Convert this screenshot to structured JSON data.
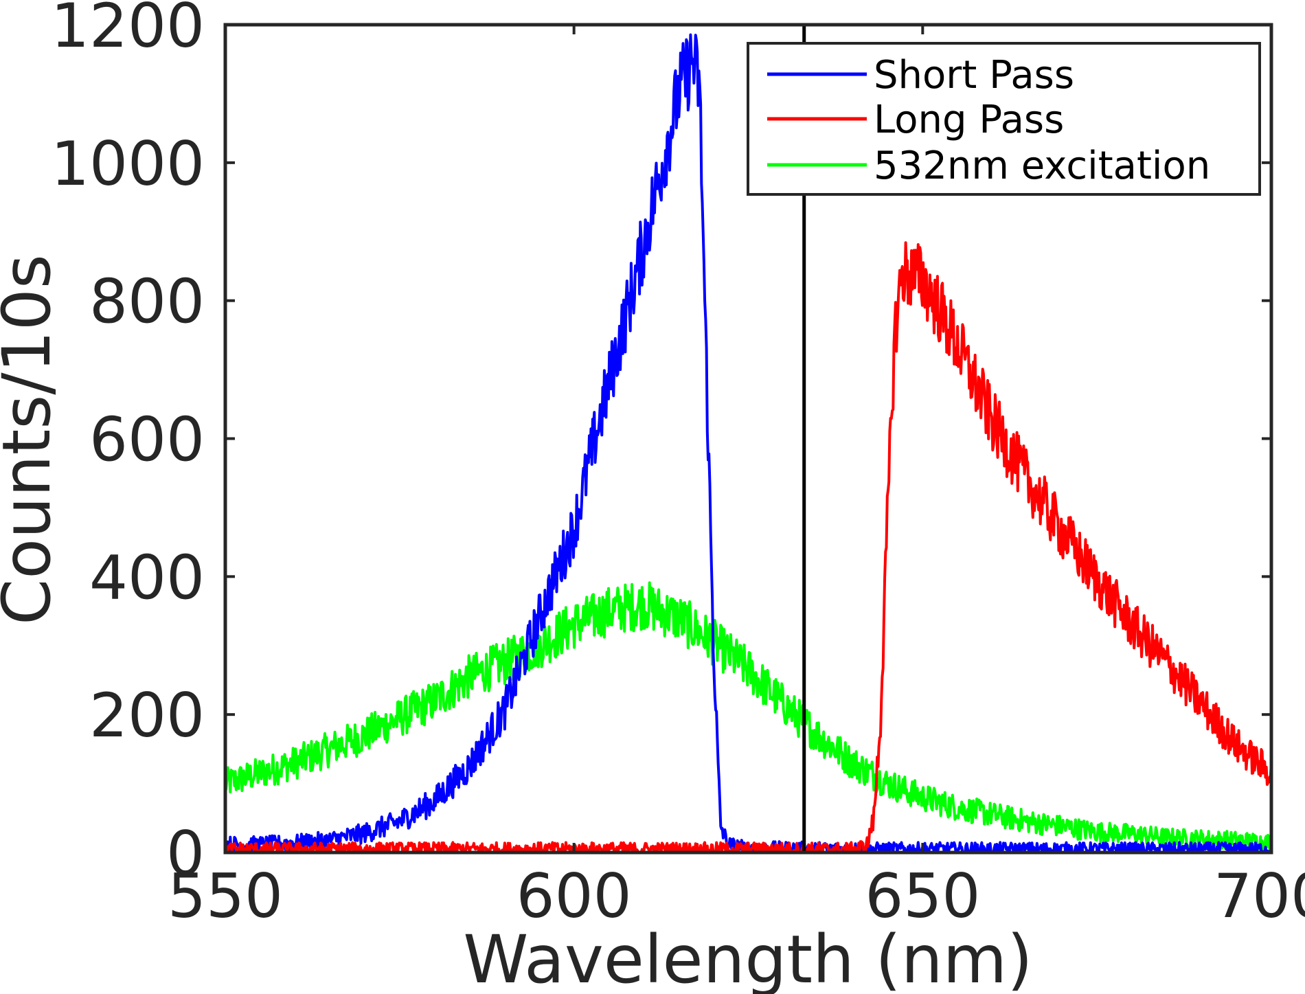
{
  "chart_data": {
    "type": "line",
    "xlabel": "Wavelength (nm)",
    "ylabel": "Counts/10s",
    "xlim": [
      550,
      700
    ],
    "ylim": [
      0,
      1200
    ],
    "xticks": [
      "550",
      "600",
      "650",
      "700"
    ],
    "yticks": [
      "0",
      "200",
      "400",
      "600",
      "800",
      "1000",
      "1200"
    ],
    "grid": false,
    "legend_position": "top-right",
    "vertical_line_x": 633,
    "series": [
      {
        "name": "Short Pass",
        "color": "#0000ff",
        "x": [
          550,
          555,
          560,
          565,
          570,
          575,
          580,
          585,
          590,
          595,
          600,
          603,
          606,
          609,
          612,
          615,
          617,
          618,
          619,
          620,
          621,
          622,
          625,
          630,
          640,
          650,
          660,
          680,
          700
        ],
        "y": [
          12,
          12,
          14,
          18,
          28,
          45,
          75,
          125,
          205,
          340,
          470,
          600,
          720,
          840,
          970,
          1100,
          1150,
          1110,
          700,
          300,
          40,
          12,
          6,
          6,
          5,
          5,
          5,
          5,
          5
        ]
      },
      {
        "name": "Long Pass",
        "color": "#ff0000",
        "x": [
          550,
          600,
          640,
          642,
          643,
          644,
          645,
          646,
          647,
          648,
          650,
          652,
          655,
          660,
          665,
          670,
          675,
          680,
          685,
          690,
          695,
          700
        ],
        "y": [
          5,
          5,
          5,
          10,
          50,
          200,
          500,
          750,
          840,
          840,
          830,
          795,
          735,
          625,
          540,
          465,
          395,
          330,
          275,
          215,
          155,
          115
        ]
      },
      {
        "name": "532nm excitation",
        "color": "#00ff00",
        "x": [
          550,
          555,
          560,
          565,
          570,
          575,
          580,
          585,
          590,
          595,
          600,
          605,
          610,
          615,
          620,
          625,
          630,
          635,
          640,
          645,
          650,
          655,
          660,
          665,
          670,
          675,
          680,
          685,
          690,
          695,
          700
        ],
        "y": [
          100,
          115,
          130,
          150,
          170,
          195,
          220,
          255,
          275,
          300,
          330,
          350,
          360,
          340,
          305,
          265,
          215,
          170,
          130,
          100,
          80,
          65,
          55,
          45,
          38,
          30,
          27,
          22,
          20,
          18,
          15
        ]
      }
    ]
  }
}
